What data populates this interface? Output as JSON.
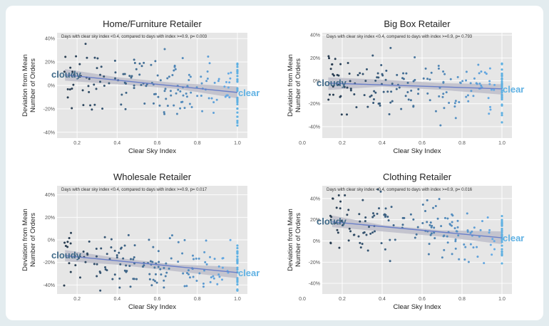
{
  "colors": {
    "panel_bg": "#e6e6e6",
    "grid": "#ffffff",
    "band": "#bdbdc9",
    "trend": "#6a7fc9",
    "cloudy": "#3f6a89",
    "clear": "#5fb1e3"
  },
  "chart_data": [
    {
      "type": "scatter",
      "title": "Home/Furniture Retailer",
      "subtitle": "Days with clear sky index <0.4, compared to days with index >=0.9, p= 0.003",
      "xlabel": "Clear Sky Index",
      "ylabel": [
        "Deviation from Mean",
        "Number of Orders"
      ],
      "xlim": [
        0.1,
        1.05
      ],
      "ylim": [
        -45,
        45
      ],
      "x_ticks": [
        "0.2",
        "0.4",
        "0.6",
        "0.8",
        "1.0"
      ],
      "y_ticks": [
        "-40%",
        "-20%",
        "0%",
        "20%",
        "40%"
      ],
      "annotations": {
        "left": "cloudy",
        "right": "clear"
      },
      "trend": {
        "x": [
          0.14,
          1.0
        ],
        "y": [
          9,
          -6
        ]
      },
      "band": {
        "x": [
          0.14,
          0.4,
          0.7,
          1.0
        ],
        "upper": [
          14,
          7,
          2,
          -1
        ],
        "lower": [
          4,
          1,
          -3,
          -11
        ]
      }
    },
    {
      "type": "scatter",
      "title": "Big Box Retailer",
      "subtitle": "Days with clear sky index <0.4, compared to days with index >=0.9, p= 0.793",
      "xlabel": "Clear Sky Index",
      "ylabel": [
        "Deviation from Mean",
        "Number of Orders"
      ],
      "xlim": [
        0.1,
        1.05
      ],
      "ylim": [
        -50,
        42
      ],
      "x_ticks": [
        "0.0",
        "0.2",
        "0.4",
        "0.6",
        "0.8",
        "1.0"
      ],
      "y_ticks": [
        "-40%",
        "-20%",
        "0%",
        "20%",
        "40%"
      ],
      "annotations": {
        "left": "cloudy",
        "right": "clear"
      },
      "trend": {
        "x": [
          0.13,
          1.0
        ],
        "y": [
          -2,
          -7
        ]
      },
      "band": {
        "x": [
          0.13,
          0.4,
          0.7,
          1.0
        ],
        "upper": [
          3,
          1,
          -2,
          -3
        ],
        "lower": [
          -8,
          -5,
          -8,
          -12
        ]
      }
    },
    {
      "type": "scatter",
      "title": "Wholesale Retailer",
      "subtitle": "Days with clear sky index <0.4, compared to days with index >=0.9, p= 0.017",
      "xlabel": "Clear Sky Index",
      "ylabel": [
        "Deviation from Mean",
        "Number of Orders"
      ],
      "xlim": [
        0.1,
        1.05
      ],
      "ylim": [
        -48,
        48
      ],
      "x_ticks": [
        "0.2",
        "0.4",
        "0.6",
        "0.8",
        "1.0"
      ],
      "y_ticks": [
        "-40%",
        "-20%",
        "0%",
        "20%",
        "40%"
      ],
      "annotations": {
        "left": "cloudy",
        "right": "clear"
      },
      "trend": {
        "x": [
          0.14,
          1.0
        ],
        "y": [
          -14,
          -29
        ]
      },
      "band": {
        "x": [
          0.14,
          0.4,
          0.7,
          1.0
        ],
        "upper": [
          -9,
          -16,
          -22,
          -24
        ],
        "lower": [
          -19,
          -22,
          -28,
          -34
        ]
      }
    },
    {
      "type": "scatter",
      "title": "Clothing Retailer",
      "subtitle": "Days with clear sky index <0.4, compared to days with index >=0.9, p= 0.016",
      "xlabel": "Clear Sky Index",
      "ylabel": [
        "Deviation from Mean",
        "Number of Orders"
      ],
      "xlim": [
        0.1,
        1.05
      ],
      "ylim": [
        -50,
        52
      ],
      "x_ticks": [
        "0.0",
        "0.2",
        "0.4",
        "0.6",
        "0.8",
        "1.0"
      ],
      "y_ticks": [
        "-40%",
        "-20%",
        "0%",
        "20%",
        "40%"
      ],
      "annotations": {
        "left": "cloudy",
        "right": "clear"
      },
      "trend": {
        "x": [
          0.15,
          1.0
        ],
        "y": [
          18,
          3
        ]
      },
      "band": {
        "x": [
          0.15,
          0.4,
          0.7,
          1.0
        ],
        "upper": [
          24,
          15,
          10,
          9
        ],
        "lower": [
          13,
          9,
          4,
          -3
        ]
      }
    }
  ]
}
